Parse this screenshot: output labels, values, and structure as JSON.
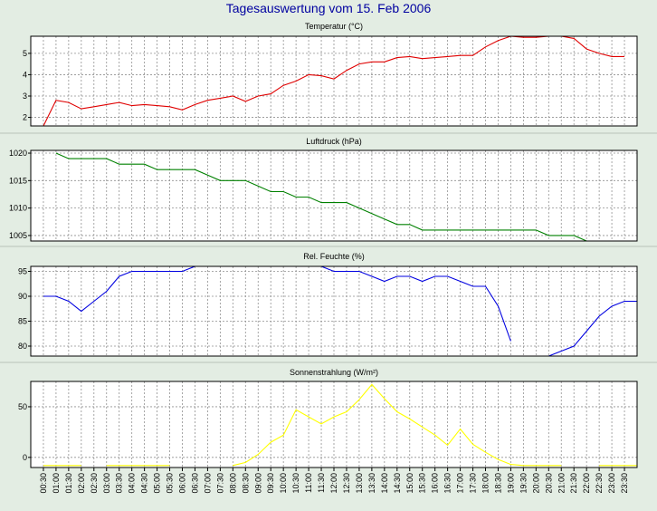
{
  "title": "Tagesauswertung vom 15. Feb 2006",
  "chart_data": [
    {
      "type": "line",
      "title": "Temperatur (°C)",
      "ylim": [
        1.6,
        5.8
      ],
      "yticks": [
        2,
        3,
        4,
        5
      ],
      "color": "#e00000",
      "grid": true,
      "x": [
        0.5,
        1,
        1.5,
        2,
        2.5,
        3,
        3.5,
        4,
        4.5,
        5,
        5.5,
        6,
        6.5,
        7,
        7.5,
        8,
        8.5,
        9,
        9.5,
        10,
        10.5,
        11,
        11.5,
        12,
        12.5,
        13,
        13.5,
        14,
        14.5,
        15,
        15.5,
        16,
        16.5,
        17,
        17.5,
        18,
        18.5,
        19,
        19.5,
        20,
        20.5,
        21,
        21.5,
        22,
        22.5,
        23,
        23.5
      ],
      "values": [
        1.6,
        2.8,
        2.7,
        2.4,
        2.5,
        2.6,
        2.7,
        2.55,
        2.6,
        2.55,
        2.5,
        2.35,
        2.6,
        2.8,
        2.9,
        3.0,
        2.75,
        3.0,
        3.1,
        3.5,
        3.7,
        4.0,
        3.95,
        3.8,
        4.2,
        4.5,
        4.6,
        4.6,
        4.8,
        4.85,
        4.75,
        4.8,
        4.85,
        4.9,
        4.9,
        5.3,
        5.6,
        5.8,
        5.75,
        5.75,
        5.8,
        5.8,
        5.7,
        5.2,
        5.0,
        4.85,
        4.85
      ]
    },
    {
      "type": "line",
      "title": "Luftdruck (hPa)",
      "ylim": [
        1004,
        1020.5
      ],
      "yticks": [
        1005,
        1010,
        1015,
        1020
      ],
      "color": "#008000",
      "grid": true,
      "x": [
        1,
        1.5,
        2,
        2.5,
        3,
        3.5,
        4,
        4.5,
        5,
        5.5,
        6,
        6.5,
        7,
        7.5,
        8,
        8.5,
        9,
        9.5,
        10,
        10.5,
        11,
        11.5,
        12,
        12.5,
        13,
        13.5,
        14,
        14.5,
        15,
        15.5,
        16,
        16.5,
        17,
        17.5,
        18,
        18.5,
        19,
        19.5,
        20,
        20.5,
        21,
        21.5,
        22
      ],
      "values": [
        1020,
        1019,
        1019,
        1019,
        1019,
        1018,
        1018,
        1018,
        1017,
        1017,
        1017,
        1017,
        1016,
        1015,
        1015,
        1015,
        1014,
        1013,
        1013,
        1012,
        1012,
        1011,
        1011,
        1011,
        1010,
        1009,
        1008,
        1007,
        1007,
        1006,
        1006,
        1006,
        1006,
        1006,
        1006,
        1006,
        1006,
        1006,
        1006,
        1005,
        1005,
        1005,
        1004
      ]
    },
    {
      "type": "line",
      "title": "Rel. Feuchte (%)",
      "ylim": [
        78,
        96
      ],
      "yticks": [
        80,
        85,
        90,
        95
      ],
      "color": "#0000e0",
      "grid": true,
      "segments": [
        {
          "x": [
            0.5,
            1,
            1.5,
            2,
            2.5,
            3,
            3.5,
            4,
            4.5,
            5,
            5.5,
            6,
            6.5
          ],
          "values": [
            90,
            90,
            89,
            87,
            89,
            91,
            94,
            95,
            95,
            95,
            95,
            95,
            96
          ]
        },
        {
          "x": [
            11.5,
            12,
            12.5,
            13,
            13.5,
            14,
            14.5,
            15,
            15.5,
            16,
            16.5,
            17,
            17.5,
            18,
            18.5,
            19
          ],
          "values": [
            96,
            95,
            95,
            95,
            94,
            93,
            94,
            94,
            93,
            94,
            94,
            93,
            92,
            92,
            88,
            81
          ]
        },
        {
          "x": [
            20.5,
            21,
            21.5,
            22,
            22.5,
            23,
            23.5,
            24
          ],
          "values": [
            78,
            79,
            80,
            83,
            86,
            88,
            89,
            89
          ]
        }
      ]
    },
    {
      "type": "line",
      "title": "Sonnenstrahlung (W/m²)",
      "ylim": [
        -10,
        75
      ],
      "yticks": [
        0,
        50
      ],
      "color": "#ffff00",
      "grid": true,
      "segments": [
        {
          "x": [
            0.5,
            2
          ],
          "values": [
            -8,
            -8
          ]
        },
        {
          "x": [
            3,
            5.5
          ],
          "values": [
            -8,
            -8
          ]
        },
        {
          "x": [
            8,
            8.5,
            9,
            9.5,
            10,
            10.5,
            11,
            11.5,
            12,
            12.5,
            13,
            13.5,
            14,
            14.5,
            15,
            15.5,
            16,
            16.5,
            17,
            17.5,
            18,
            18.5,
            19,
            19.5,
            20,
            20.5,
            21
          ],
          "values": [
            -8,
            -5,
            3,
            15,
            22,
            47,
            40,
            33,
            40,
            45,
            57,
            72,
            58,
            45,
            38,
            30,
            22,
            12,
            28,
            13,
            5,
            -2,
            -7,
            -8,
            -8,
            -8,
            -8
          ]
        },
        {
          "x": [
            22.5,
            24
          ],
          "values": [
            -8,
            -8
          ]
        }
      ]
    }
  ],
  "x_tick_labels": [
    "00:30",
    "01:00",
    "01:30",
    "02:00",
    "02:30",
    "03:00",
    "03:30",
    "04:00",
    "04:30",
    "05:00",
    "05:30",
    "06:00",
    "06:30",
    "07:00",
    "07:30",
    "08:00",
    "08:30",
    "09:00",
    "09:30",
    "10:00",
    "10:30",
    "11:00",
    "11:30",
    "12:00",
    "12:30",
    "13:00",
    "13:30",
    "14:00",
    "14:30",
    "15:00",
    "15:30",
    "16:00",
    "16:30",
    "17:00",
    "17:30",
    "18:00",
    "18:30",
    "19:00",
    "19:30",
    "20:00",
    "20:30",
    "21:00",
    "21:30",
    "22:00",
    "22:30",
    "23:00",
    "23:30"
  ]
}
